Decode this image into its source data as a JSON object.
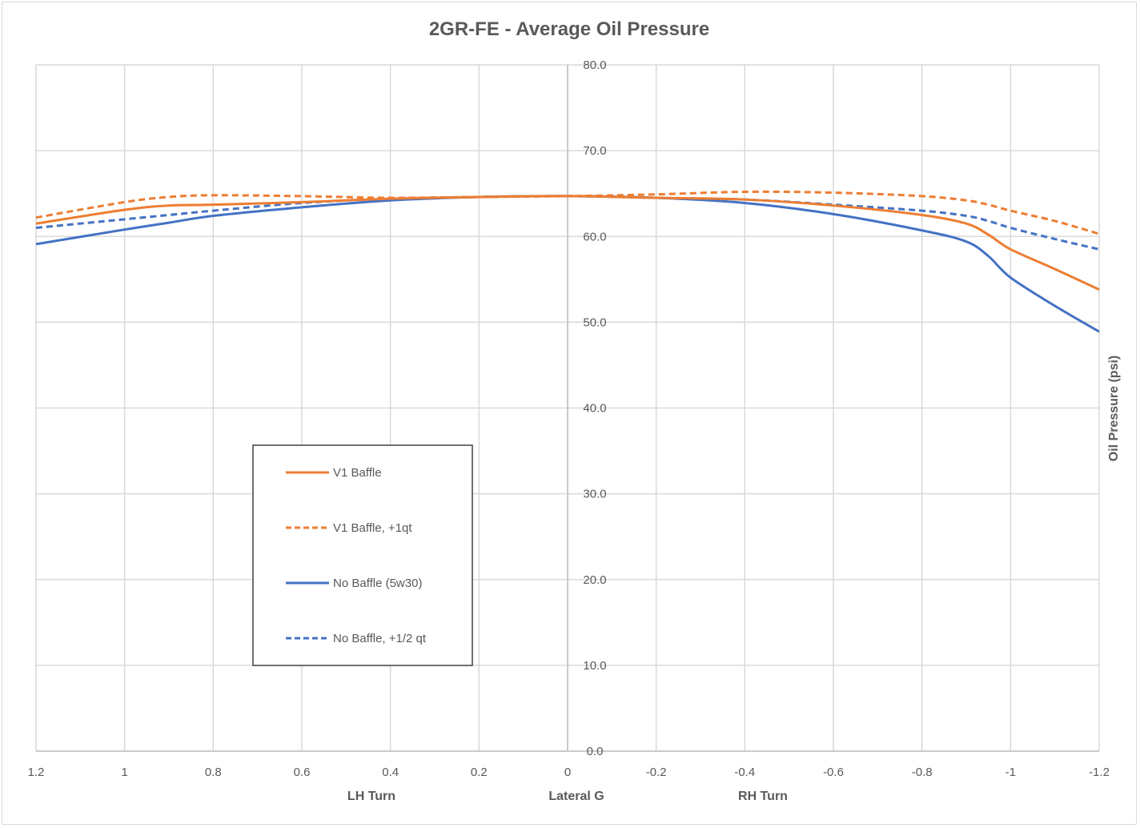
{
  "chart_data": {
    "type": "line",
    "title": "2GR-FE - Average Oil Pressure",
    "xlabel": "Lateral G",
    "xlabel_left": "LH Turn",
    "xlabel_right": "RH Turn",
    "ylabel": "Oil Pressure (psi)",
    "xlim": [
      1.2,
      -1.2
    ],
    "x_reversed": true,
    "ylim": [
      0,
      80
    ],
    "x_ticks": [
      1.2,
      1,
      0.8,
      0.6,
      0.4,
      0.2,
      0,
      -0.2,
      -0.4,
      -0.6,
      -0.8,
      -1,
      -1.2
    ],
    "x_tick_labels": [
      "1.2",
      "1",
      "0.8",
      "0.6",
      "0.4",
      "0.2",
      "0",
      "-0.2",
      "-0.4",
      "-0.6",
      "-0.8",
      "-1",
      "-1.2"
    ],
    "y_ticks": [
      0,
      10,
      20,
      30,
      40,
      50,
      60,
      70,
      80
    ],
    "y_tick_labels": [
      "0.0",
      "10.0",
      "20.0",
      "30.0",
      "40.0",
      "50.0",
      "60.0",
      "70.0",
      "80.0"
    ],
    "grid": true,
    "legend_position": "center-left",
    "x": [
      1.2,
      1.0,
      0.9,
      0.8,
      0.6,
      0.4,
      0.2,
      0,
      -0.2,
      -0.4,
      -0.6,
      -0.8,
      -0.9,
      -0.95,
      -1.0,
      -1.1,
      -1.2
    ],
    "series": [
      {
        "name": "V1 Baffle",
        "color": "#ed7d31",
        "dash": "solid",
        "values": [
          61.5,
          63.1,
          63.6,
          63.7,
          64.0,
          64.4,
          64.6,
          64.7,
          64.5,
          64.3,
          63.6,
          62.5,
          61.5,
          60.2,
          58.5,
          56.2,
          53.8
        ]
      },
      {
        "name": "V1 Baffle, +1qt",
        "color": "#ed7d31",
        "dash": "dashed",
        "values": [
          62.2,
          64.0,
          64.6,
          64.8,
          64.7,
          64.5,
          64.6,
          64.7,
          64.9,
          65.2,
          65.1,
          64.7,
          64.2,
          63.7,
          63.0,
          61.8,
          60.3
        ]
      },
      {
        "name": "No Baffle (5w30)",
        "color": "#4472c4",
        "dash": "solid",
        "values": [
          59.1,
          60.8,
          61.6,
          62.4,
          63.4,
          64.2,
          64.6,
          64.7,
          64.5,
          63.9,
          62.6,
          60.7,
          59.4,
          57.7,
          55.2,
          51.9,
          48.9
        ]
      },
      {
        "name": "No Baffle, +1/2 qt",
        "color": "#4472c4",
        "dash": "dashed",
        "values": [
          61.0,
          62.0,
          62.5,
          63.0,
          63.9,
          64.4,
          64.6,
          64.7,
          64.5,
          64.3,
          63.7,
          63.0,
          62.4,
          61.8,
          61.0,
          59.7,
          58.5
        ]
      }
    ]
  }
}
